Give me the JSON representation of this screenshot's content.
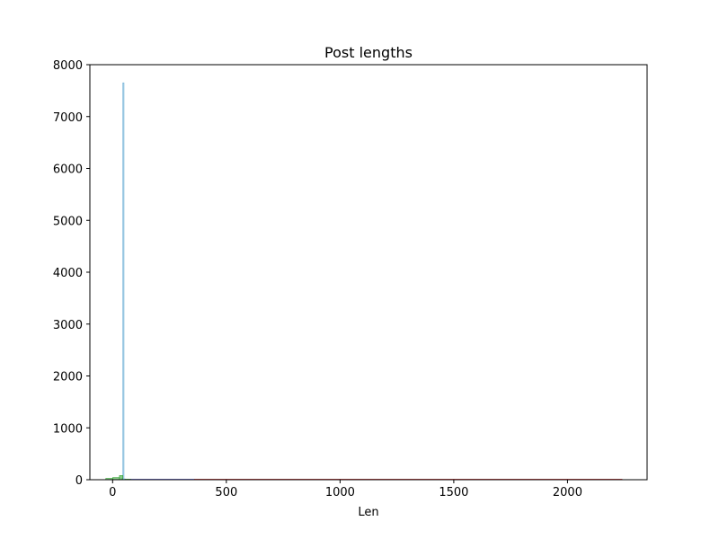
{
  "chart_data": {
    "type": "bar",
    "title": "Post lengths",
    "xlabel": "Len",
    "ylabel": "",
    "xlim": [
      -100,
      2350
    ],
    "ylim": [
      0,
      8000
    ],
    "x_ticks": [
      0,
      500,
      1000,
      1500,
      2000
    ],
    "y_ticks": [
      0,
      1000,
      2000,
      3000,
      4000,
      5000,
      6000,
      7000,
      8000
    ],
    "grid": false,
    "series": [
      {
        "color": "#6baed6",
        "bins": [
          {
            "x": 40,
            "x2": 45,
            "value": 20
          },
          {
            "x": 45,
            "x2": 50,
            "value": 7650
          },
          {
            "x": 50,
            "x2": 55,
            "value": 15
          }
        ]
      },
      {
        "color": "#2ca02c",
        "bins": [
          {
            "x": -30,
            "x2": 0,
            "value": 25
          },
          {
            "x": 0,
            "x2": 30,
            "value": 40
          },
          {
            "x": 30,
            "x2": 45,
            "value": 80
          },
          {
            "x": 55,
            "x2": 80,
            "value": 10
          }
        ]
      },
      {
        "color": "#1f1fd0",
        "bins": [
          {
            "x": 80,
            "x2": 360,
            "value": 8
          }
        ]
      },
      {
        "color": "#d62728",
        "bins": [
          {
            "x": 360,
            "x2": 2240,
            "value": 10
          }
        ]
      }
    ]
  }
}
